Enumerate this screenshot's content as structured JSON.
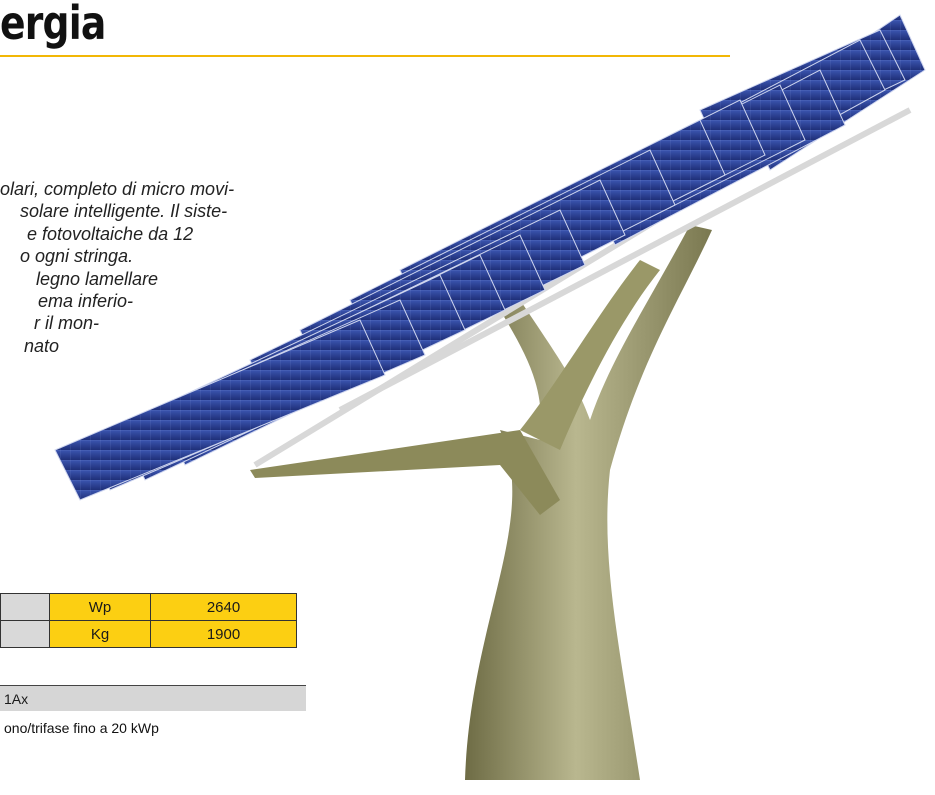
{
  "heading": "ergia",
  "description_lines": [
    "olari, completo di micro movi-",
    "solare intelligente. Il siste-",
    "e  fotovoltaiche  da  12",
    "o ogni stringa.",
    "legno  lamellare",
    "ema inferio-",
    "r il mon-",
    "nato"
  ],
  "specs": [
    {
      "unit": "Wp",
      "value": "2640"
    },
    {
      "unit": "Kg",
      "value": "1900"
    }
  ],
  "model_bar": "1Ax",
  "inverter_note": "ono/trifase fino a 20 kWp",
  "colors": {
    "accent_yellow": "#fccf12",
    "rule_yellow": "#f2b705",
    "panel_blue": "#2a3f8f",
    "trunk_olive": "#8a8a58",
    "grey_bar": "#d6d6d6"
  },
  "icons": [
    "solar-tree-illustration"
  ]
}
